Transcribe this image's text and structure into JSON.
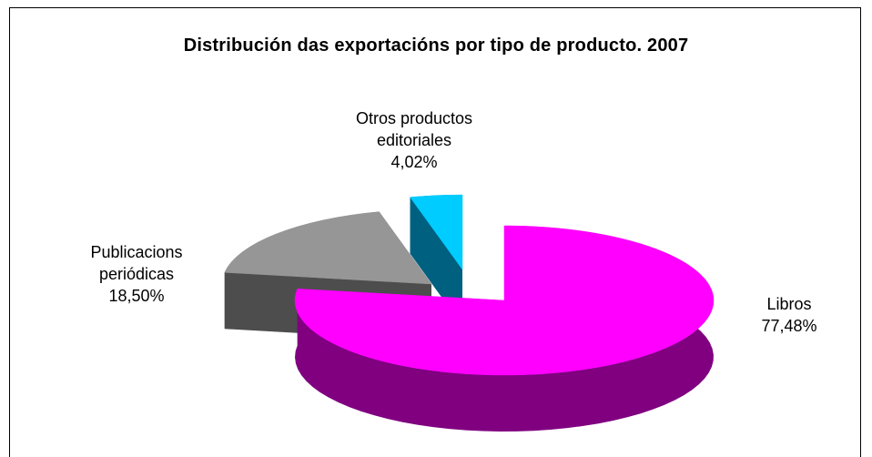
{
  "chart_data": {
    "type": "pie",
    "title": "Distribución das exportacións por tipo de producto. 2007",
    "slices": [
      {
        "label_lines": [
          "Libros"
        ],
        "value_text": "77,48%",
        "value": 77.48,
        "top_color": "#ff00ff",
        "side_color": "#800080"
      },
      {
        "label_lines": [
          "Publicacions",
          "periódicas"
        ],
        "value_text": "18,50%",
        "value": 18.5,
        "top_color": "#969696",
        "side_color": "#4d4d4d"
      },
      {
        "label_lines": [
          "Otros productos",
          "editoriales"
        ],
        "value_text": "4,02%",
        "value": 4.02,
        "top_color": "#00ccff",
        "side_color": "#006080"
      }
    ]
  }
}
